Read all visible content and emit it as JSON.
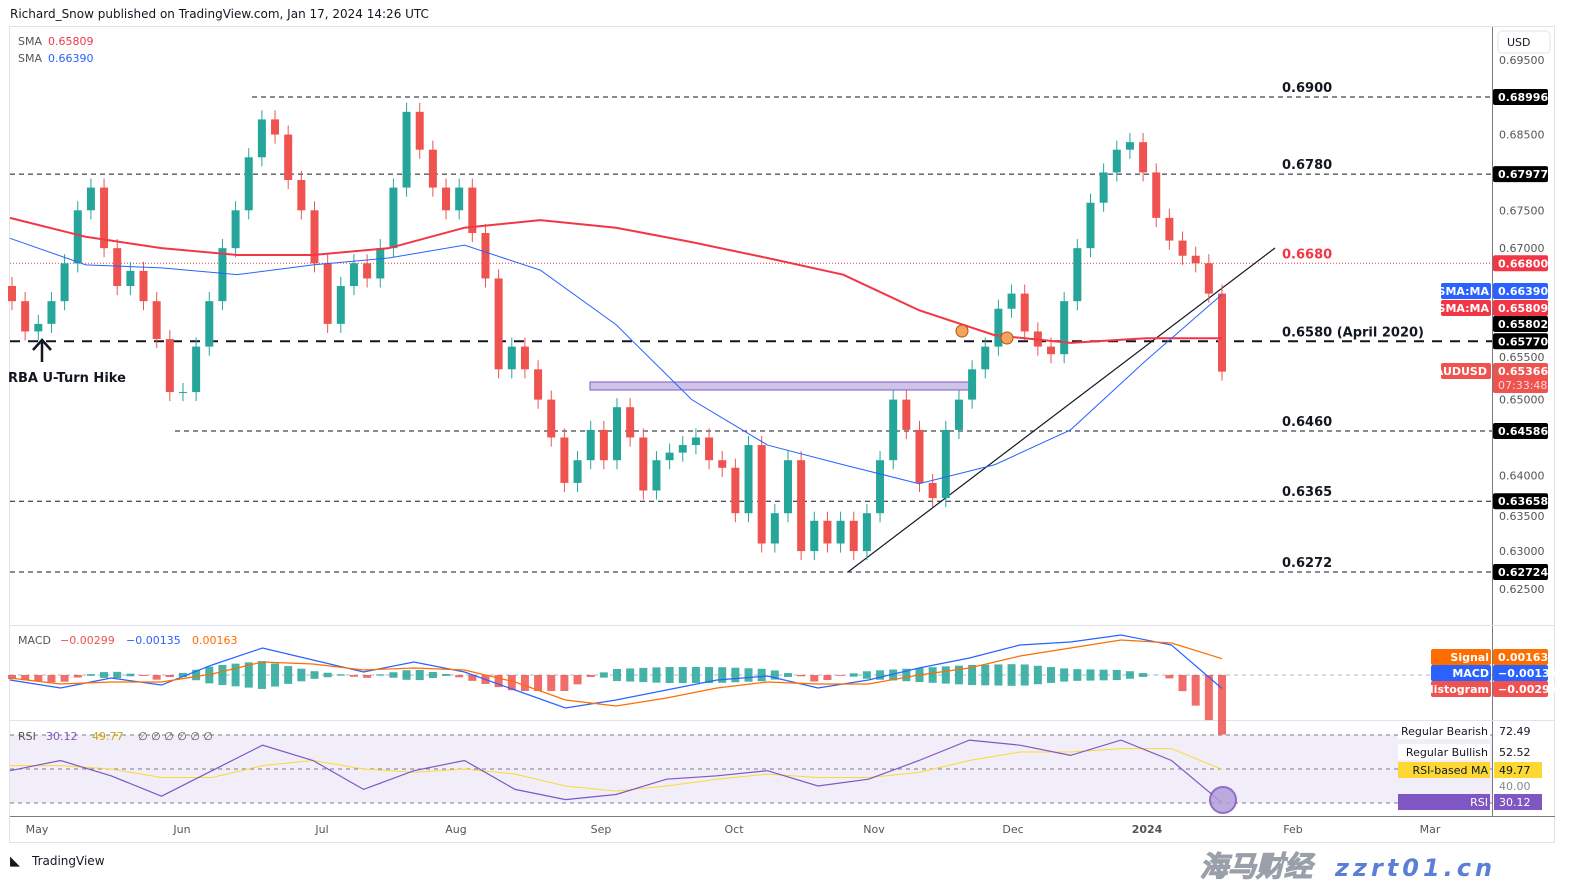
{
  "header": {
    "publisher": "Richard_Snow published on TradingView.com, Jan 17, 2024 14:26 UTC"
  },
  "legend": {
    "sma1_label": "SMA",
    "sma1_value": "0.65809",
    "sma2_label": "SMA",
    "sma2_value": "0.66390"
  },
  "currency_button": "USD",
  "footer": {
    "logo_text": "TradingView"
  },
  "watermark": {
    "cn": "海马财经",
    "url": "zzrt01.cn"
  },
  "annotation": {
    "text": "RBA U-Turn Hike"
  },
  "colors": {
    "up": "#26a69a",
    "down": "#ef5350",
    "sma200": "#f23645",
    "sma50": "#2962ff",
    "macd": "#2962ff",
    "signal": "#ff6d00",
    "rsi": "#7e57c2",
    "rsi_ma": "#fdd835"
  },
  "chart_data": {
    "type": "candlestick",
    "symbol": "AUDUSD",
    "x_ticks": [
      "May",
      "Jun",
      "Jul",
      "Aug",
      "Sep",
      "Oct",
      "Nov",
      "Dec",
      "2024",
      "Feb",
      "Mar"
    ],
    "y_ticks": [
      "0.69500",
      "0.68500",
      "0.67500",
      "0.67000",
      "0.65500",
      "0.65000",
      "0.64000",
      "0.63500",
      "0.63000",
      "0.62500"
    ],
    "ylim": [
      0.62,
      0.695
    ],
    "closes": [
      0.663,
      0.659,
      0.66,
      0.663,
      0.668,
      0.675,
      0.678,
      0.67,
      0.665,
      0.667,
      0.663,
      0.658,
      0.651,
      0.651,
      0.657,
      0.663,
      0.67,
      0.675,
      0.682,
      0.687,
      0.685,
      0.679,
      0.675,
      0.668,
      0.66,
      0.665,
      0.668,
      0.666,
      0.67,
      0.678,
      0.688,
      0.683,
      0.678,
      0.675,
      0.678,
      0.672,
      0.666,
      0.654,
      0.657,
      0.654,
      0.65,
      0.645,
      0.639,
      0.642,
      0.646,
      0.642,
      0.649,
      0.645,
      0.638,
      0.642,
      0.643,
      0.644,
      0.645,
      0.642,
      0.641,
      0.635,
      0.644,
      0.631,
      0.635,
      0.642,
      0.63,
      0.634,
      0.631,
      0.634,
      0.63,
      0.635,
      0.642,
      0.65,
      0.646,
      0.639,
      0.637,
      0.646,
      0.65,
      0.654,
      0.657,
      0.662,
      0.664,
      0.659,
      0.657,
      0.656,
      0.663,
      0.67,
      0.676,
      0.68,
      0.683,
      0.684,
      0.68,
      0.674,
      0.671,
      0.669,
      0.668,
      0.664,
      0.6537
    ],
    "sma200": [
      0.674,
      0.6715,
      0.67,
      0.6691,
      0.6691,
      0.67,
      0.6727,
      0.6737,
      0.6727,
      0.6708,
      0.6687,
      0.6665,
      0.6618,
      0.6585,
      0.6575,
      0.6581,
      0.6581
    ],
    "sma50": [
      0.6713,
      0.6678,
      0.6674,
      0.6665,
      0.6678,
      0.6687,
      0.6704,
      0.6671,
      0.6599,
      0.65,
      0.644,
      0.6414,
      0.6389,
      0.6414,
      0.646,
      0.6552,
      0.6639
    ],
    "levels": [
      {
        "label": "0.6900",
        "tag": "0.68996",
        "price": 0.68996,
        "style": "dashed"
      },
      {
        "label": "0.6780",
        "tag": "0.67977",
        "price": 0.67977,
        "style": "dashed"
      },
      {
        "label": "0.6680",
        "tag": "0.66800",
        "price": 0.668,
        "style": "dotted-red"
      },
      {
        "label": "0.6580 (April 2020)",
        "tag": "0.65770",
        "price": 0.6577,
        "style": "thick-dashed"
      },
      {
        "label": "0.6460",
        "tag": "0.64586",
        "price": 0.64586,
        "style": "dashed"
      },
      {
        "label": "0.6365",
        "tag": "0.63658",
        "price": 0.63658,
        "style": "dashed"
      },
      {
        "label": "0.6272",
        "tag": "0.62724",
        "price": 0.62724,
        "style": "dashed"
      }
    ],
    "price_tags": [
      {
        "name": "SMA:MA",
        "value": "0.66390",
        "color": "#2962ff"
      },
      {
        "name": "SMA:MA",
        "value": "0.65809",
        "color": "#f23645"
      },
      {
        "name": "",
        "value": "0.65802",
        "color": "#000000"
      },
      {
        "name": "AUDUSD",
        "value": "0.65366",
        "countdown": "07:33:48",
        "color": "#ef5350"
      }
    ],
    "macd": {
      "legend_label": "MACD",
      "histogram": "−0.00299",
      "macd": "−0.00135",
      "signal": "0.00163",
      "tags": [
        {
          "name": "Signal",
          "value": "0.00163"
        },
        {
          "name": "MACD",
          "value": "−0.00135"
        },
        {
          "name": "Histogram",
          "value": "−0.00299"
        }
      ],
      "macd_line": [
        -0.0005,
        -0.0013,
        -0.0003,
        -0.001,
        0.001,
        0.0027,
        0.0015,
        0.0003,
        0.0013,
        0.0003,
        -0.0015,
        -0.0033,
        -0.0025,
        -0.0015,
        -0.0005,
        -0.0001,
        -0.0013,
        -0.0005,
        0.0007,
        0.0017,
        0.003,
        0.0033,
        0.004,
        0.003,
        -0.00135
      ],
      "signal_line": [
        -0.0003,
        -0.0009,
        -0.0007,
        -0.0007,
        0.0001,
        0.0013,
        0.0011,
        0.0005,
        0.0007,
        0.0005,
        -0.0007,
        -0.0025,
        -0.0031,
        -0.0023,
        -0.0013,
        -0.0007,
        -0.0009,
        -0.0009,
        0,
        0.0007,
        0.0019,
        0.0027,
        0.0035,
        0.0032,
        0.00163
      ]
    },
    "rsi": {
      "legend_label": "RSI",
      "value": "30.12",
      "ma_value": "49.77",
      "extra": "∅ ∅ ∅ ∅ ∅ ∅",
      "tags": [
        {
          "name": "Regular Bearish",
          "value": "72.49"
        },
        {
          "name": "Regular Bullish",
          "value": "52.52"
        },
        {
          "name": "RSI-based MA",
          "value": "49.77"
        },
        {
          "name": "",
          "value": "40.00"
        },
        {
          "name": "RSI",
          "value": "30.12"
        }
      ],
      "rsi_line": [
        49,
        55,
        46,
        34,
        49,
        64,
        55,
        38,
        49,
        55,
        38,
        32,
        35,
        44,
        46,
        49,
        40,
        44,
        55,
        67,
        64,
        58,
        67,
        55,
        30.12
      ],
      "rsi_ma": [
        52,
        52,
        50,
        45,
        45,
        52,
        55,
        50,
        48,
        50,
        47,
        40,
        37,
        40,
        44,
        47,
        45,
        45,
        48,
        55,
        60,
        60,
        62,
        62,
        49.77
      ],
      "band": [
        30,
        70
      ]
    }
  }
}
